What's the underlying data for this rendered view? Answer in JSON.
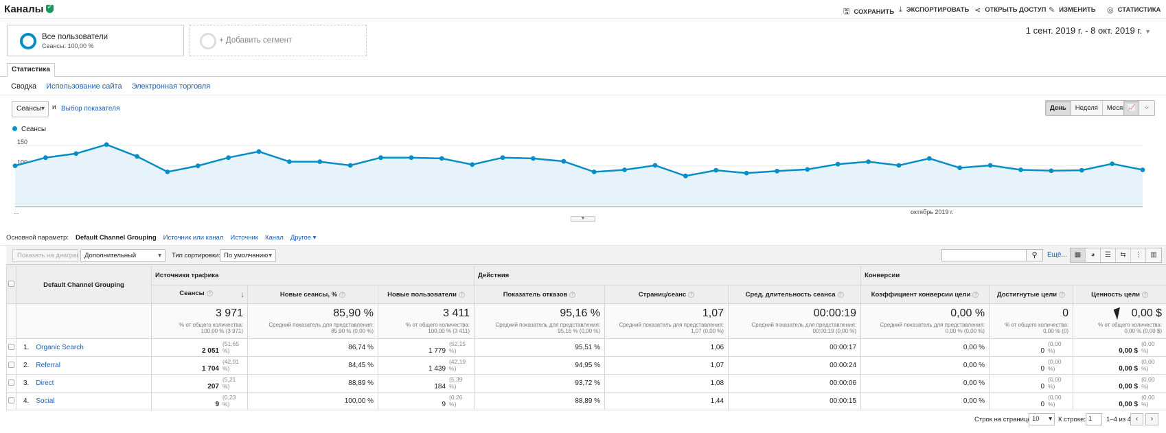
{
  "header": {
    "title": "Каналы",
    "toolbar": [
      {
        "label": "СОХРАНИТЬ",
        "icon": "save-icon",
        "glyph": "🖫"
      },
      {
        "label": "ЭКСПОРТИРОВАТЬ",
        "icon": "download-icon",
        "glyph": "⤓"
      },
      {
        "label": "ОТКРЫТЬ ДОСТУП",
        "icon": "share-icon",
        "glyph": "⋖"
      },
      {
        "label": "ИЗМЕНИТЬ",
        "icon": "pencil-icon",
        "glyph": "✎"
      },
      {
        "label": "СТАТИСТИКА",
        "icon": "insights-icon",
        "glyph": "◎"
      }
    ]
  },
  "segments": {
    "active": {
      "name": "Все пользователи",
      "sub": "Сеансы: 100,00 %"
    },
    "add_label": "+ Добавить сегмент"
  },
  "date_range": "1 сент. 2019 г. - 8 окт. 2019 г.",
  "tabs": {
    "main": "Статистика",
    "sub": [
      "Сводка",
      "Использование сайта",
      "Электронная торговля"
    ]
  },
  "chart_controls": {
    "metric": "Сеансы",
    "and": "и",
    "choose_metric": "Выбор показателя",
    "periods": [
      "День",
      "Неделя",
      "Месяц"
    ],
    "active_period": "День"
  },
  "chart_data": {
    "type": "area",
    "series": [
      {
        "name": "Сеансы",
        "color": "#058dc7",
        "values": [
          100,
          120,
          130,
          152,
          123,
          85,
          100,
          120,
          135,
          110,
          110,
          101,
          120,
          120,
          118,
          103,
          120,
          118,
          111,
          85,
          90,
          101,
          75,
          89,
          82,
          87,
          91,
          104,
          110,
          101,
          118,
          95,
          101,
          90,
          88,
          89,
          105,
          90
        ]
      }
    ],
    "ylim": [
      0,
      170
    ],
    "yticks": [
      "150",
      "100",
      "50"
    ],
    "xlabels": [
      "...",
      "октябрь 2019 г."
    ],
    "grid": true
  },
  "dimensions": {
    "label": "Основной параметр:",
    "current": "Default Channel Grouping",
    "options": [
      "Источник или канал",
      "Источник",
      "Канал"
    ],
    "other": "Другое"
  },
  "table_toolbar": {
    "show_chart": "Показать на диаграмм",
    "secondary": "Дополнительный параметр",
    "sort_label": "Тип сортировки:",
    "sort_value": "По умолчанию",
    "more": "Ещё..."
  },
  "table": {
    "dim_header": "Default Channel Grouping",
    "groups": [
      "Источники трафика",
      "Действия",
      "Конверсии"
    ],
    "columns": [
      "Сеансы",
      "Новые сеансы, %",
      "Новые пользователи",
      "Показатель отказов",
      "Страниц/сеанс",
      "Сред. длительность сеанса",
      "Коэффициент конверсии цели",
      "Достигнутые цели",
      "Ценность цели"
    ],
    "totals": [
      {
        "v": "3 971",
        "s1": "% от общего количества:",
        "s2": "100,00 % (3 971)"
      },
      {
        "v": "85,90 %",
        "s1": "Средний показатель для представления:",
        "s2": "85,90 % (0,00 %)"
      },
      {
        "v": "3 411",
        "s1": "% от общего количества:",
        "s2": "100,00 % (3 411)"
      },
      {
        "v": "95,16 %",
        "s1": "Средний показатель для представления:",
        "s2": "95,16 % (0,00 %)"
      },
      {
        "v": "1,07",
        "s1": "Средний показатель для представления:",
        "s2": "1,07 (0,00 %)"
      },
      {
        "v": "00:00:19",
        "s1": "Средний показатель для представления:",
        "s2": "00:00:19 (0,00 %)"
      },
      {
        "v": "0,00 %",
        "s1": "Средний показатель для представления:",
        "s2": "0,00 % (0,00 %)"
      },
      {
        "v": "0",
        "s1": "% от общего количества:",
        "s2": "0,00 % (0)"
      },
      {
        "v": "0,00 $",
        "s1": "% от общего количества:",
        "s2": "0,00 % (0,00 $)"
      }
    ],
    "rows": [
      {
        "n": "1.",
        "name": "Organic Search",
        "sessions": "2 051",
        "sp": "(51,65 %)",
        "new_pct": "86,74 %",
        "new_users": "1 779",
        "nup": "(52,15 %)",
        "bounce": "95,51 %",
        "pps": "1,06",
        "dur": "00:00:17",
        "conv": "0,00 %",
        "goals": "0",
        "gp": "(0,00 %)",
        "value": "0,00 $",
        "vp": "(0,00 %)"
      },
      {
        "n": "2.",
        "name": "Referral",
        "sessions": "1 704",
        "sp": "(42,91 %)",
        "new_pct": "84,45 %",
        "new_users": "1 439",
        "nup": "(42,19 %)",
        "bounce": "94,95 %",
        "pps": "1,07",
        "dur": "00:00:24",
        "conv": "0,00 %",
        "goals": "0",
        "gp": "(0,00 %)",
        "value": "0,00 $",
        "vp": "(0,00 %)"
      },
      {
        "n": "3.",
        "name": "Direct",
        "sessions": "207",
        "sp": "(5,21 %)",
        "new_pct": "88,89 %",
        "new_users": "184",
        "nup": "(5,39 %)",
        "bounce": "93,72 %",
        "pps": "1,08",
        "dur": "00:00:06",
        "conv": "0,00 %",
        "goals": "0",
        "gp": "(0,00 %)",
        "value": "0,00 $",
        "vp": "(0,00 %)"
      },
      {
        "n": "4.",
        "name": "Social",
        "sessions": "9",
        "sp": "(0,23 %)",
        "new_pct": "100,00 %",
        "new_users": "9",
        "nup": "(0,26 %)",
        "bounce": "88,89 %",
        "pps": "1,44",
        "dur": "00:00:15",
        "conv": "0,00 %",
        "goals": "0",
        "gp": "(0,00 %)",
        "value": "0,00 $",
        "vp": "(0,00 %)"
      }
    ]
  },
  "footer": {
    "rows_label": "Строк на странице:",
    "rows_value": "10",
    "goto_label": "К строке:",
    "goto_value": "1",
    "range": "1–4 из 4"
  }
}
